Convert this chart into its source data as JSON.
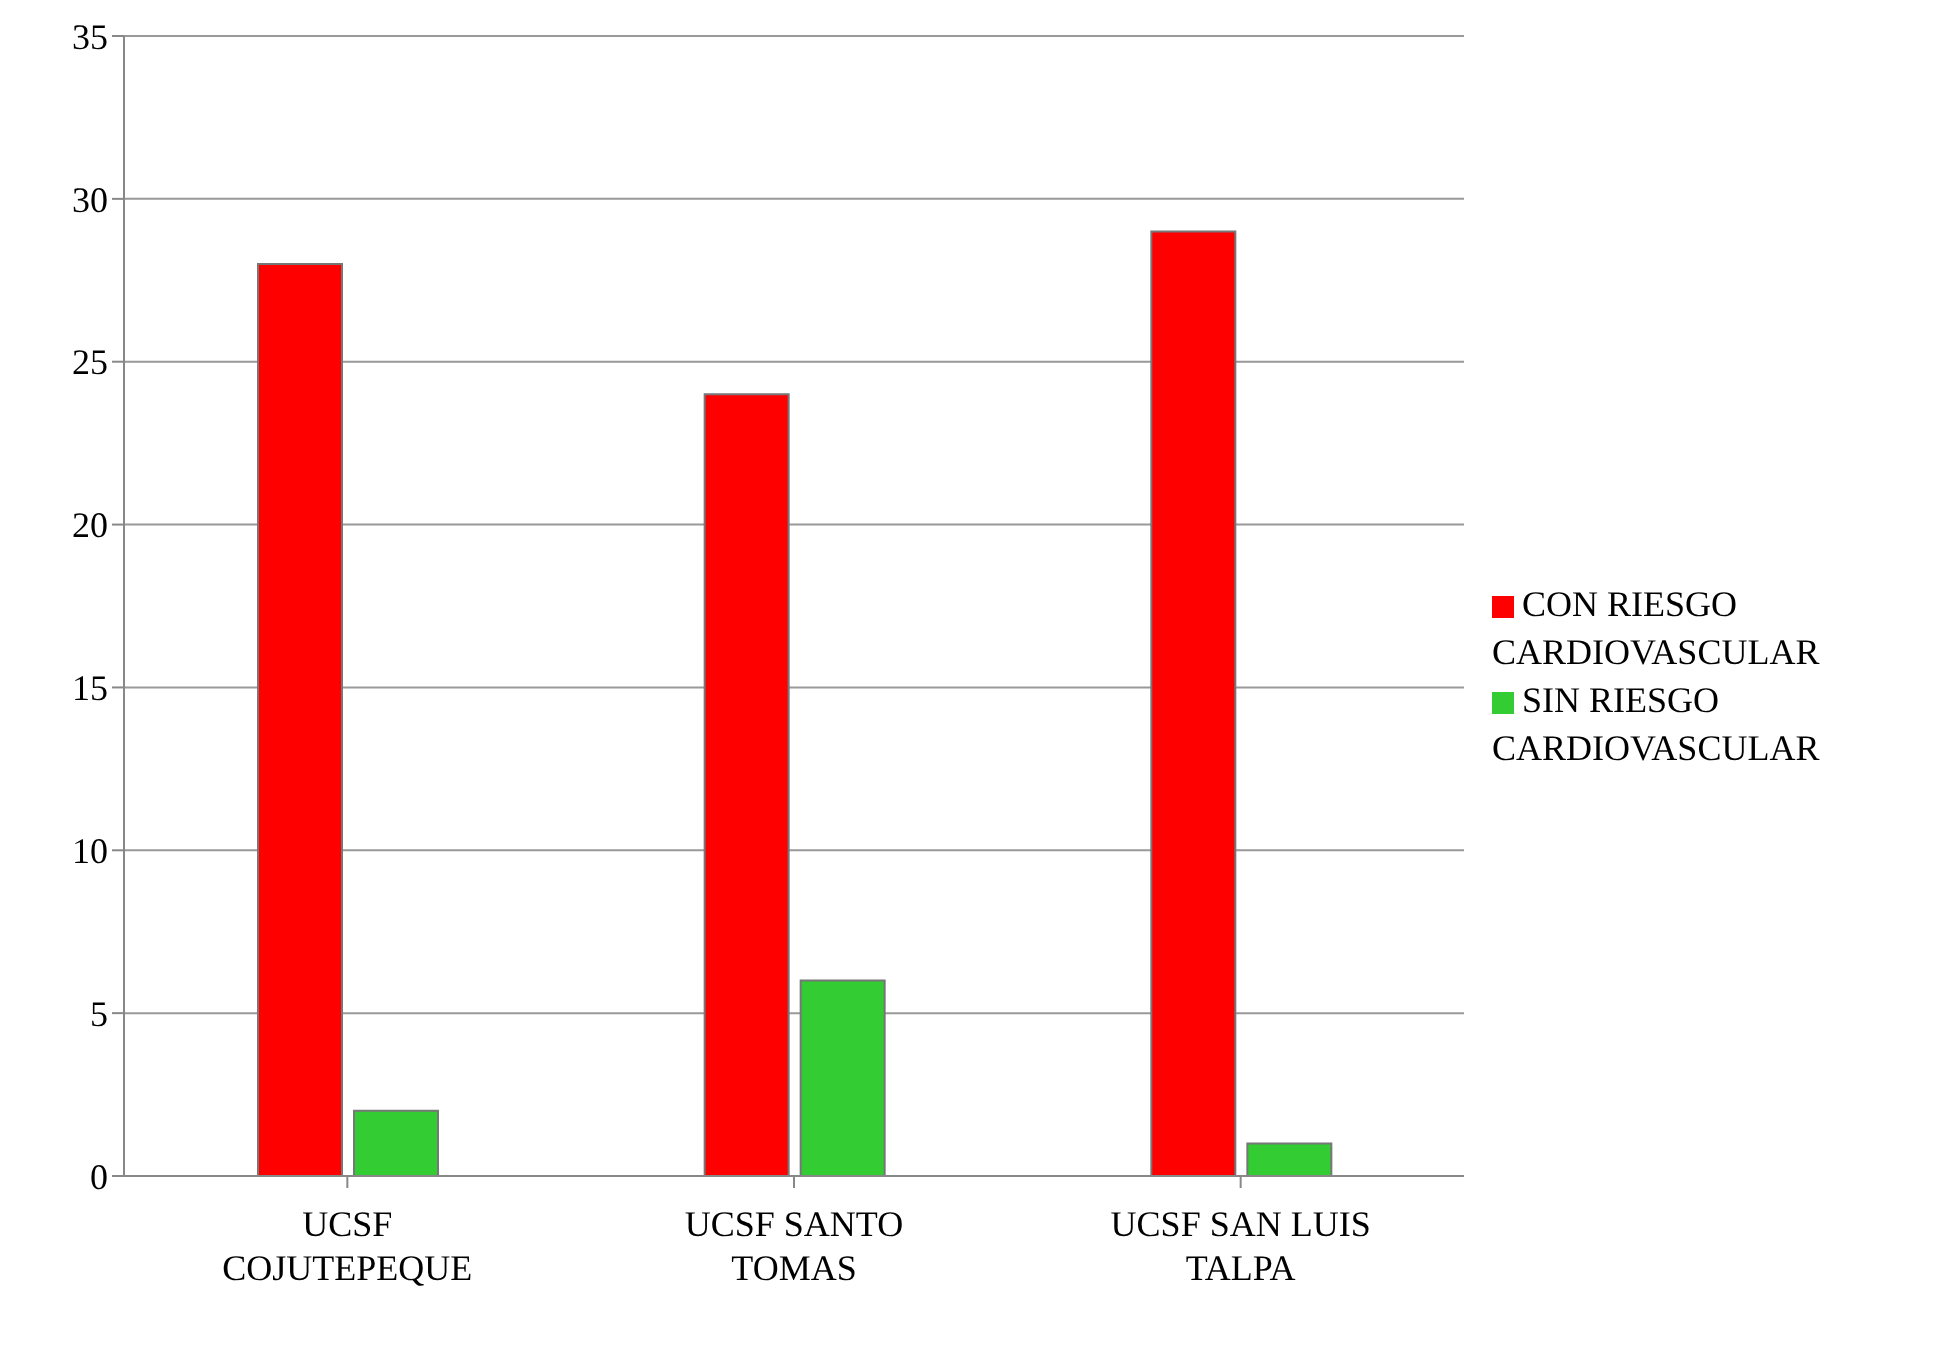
{
  "chart_data": {
    "type": "bar",
    "categories": [
      "UCSF COJUTEPEQUE",
      "UCSF SANTO TOMAS",
      "UCSF SAN LUIS TALPA"
    ],
    "series": [
      {
        "name": "CON RIESGO CARDIOVASCULAR",
        "color": "#ff0000",
        "values": [
          28,
          24,
          29
        ]
      },
      {
        "name": "SIN RIESGO CARDIOVASCULAR",
        "color": "#33cc33",
        "values": [
          2,
          6,
          1
        ]
      }
    ],
    "ylim": [
      0,
      35
    ],
    "yticks": [
      0,
      5,
      10,
      15,
      20,
      25,
      30,
      35
    ],
    "grid": "y",
    "legend": "right"
  }
}
